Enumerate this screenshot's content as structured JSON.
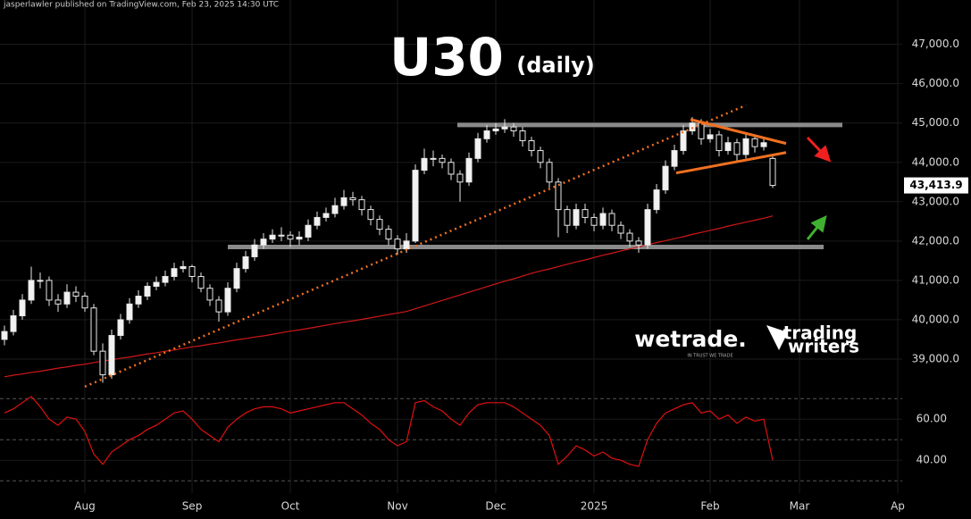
{
  "chart_data": {
    "type": "candlestick",
    "attribution": "jasperlawler published on TradingView.com, Feb 23, 2025 14:30 UTC",
    "title": "U30",
    "subtitle": "(daily)",
    "logos": [
      "wetrade.",
      "IN TRUST WE TRADE",
      "trading",
      "writers"
    ],
    "categories": [
      null,
      null,
      null,
      null,
      null,
      null,
      null,
      null,
      null,
      "Aug",
      null,
      null,
      null,
      null,
      null,
      null,
      null,
      null,
      null,
      null,
      null,
      "Sep",
      null,
      null,
      null,
      null,
      null,
      null,
      null,
      null,
      null,
      null,
      "Oct",
      null,
      null,
      null,
      null,
      null,
      null,
      null,
      null,
      null,
      null,
      null,
      "Nov",
      null,
      null,
      null,
      null,
      null,
      null,
      null,
      null,
      null,
      null,
      "Dec",
      null,
      null,
      null,
      null,
      null,
      null,
      null,
      null,
      null,
      null,
      "2025",
      null,
      null,
      null,
      null,
      null,
      null,
      null,
      null,
      null,
      null,
      null,
      null,
      "Feb",
      null,
      null,
      null,
      null,
      null,
      null,
      null,
      null,
      null,
      "Mar",
      null,
      null,
      null,
      null,
      null,
      null,
      null,
      null,
      null,
      null,
      "Ap"
    ],
    "ohlc": [
      [
        39500,
        39850,
        39350,
        39700
      ],
      [
        39700,
        40250,
        39600,
        40100
      ],
      [
        40100,
        40650,
        40000,
        40500
      ],
      [
        40500,
        41350,
        40400,
        41000
      ],
      [
        41000,
        41200,
        40800,
        41000
      ],
      [
        41000,
        41100,
        40350,
        40500
      ],
      [
        40500,
        40650,
        40200,
        40400
      ],
      [
        40400,
        40900,
        40300,
        40700
      ],
      [
        40700,
        40850,
        40450,
        40600
      ],
      [
        40600,
        40700,
        40200,
        40300
      ],
      [
        40300,
        40400,
        39100,
        39200
      ],
      [
        39200,
        39400,
        38400,
        38600
      ],
      [
        38600,
        39750,
        38500,
        39600
      ],
      [
        39600,
        40150,
        39500,
        40000
      ],
      [
        40000,
        40550,
        39900,
        40400
      ],
      [
        40400,
        40750,
        40300,
        40600
      ],
      [
        40600,
        40950,
        40500,
        40850
      ],
      [
        40850,
        41100,
        40750,
        40950
      ],
      [
        40950,
        41250,
        40850,
        41100
      ],
      [
        41100,
        41450,
        41000,
        41300
      ],
      [
        41300,
        41500,
        41200,
        41350
      ],
      [
        41350,
        41400,
        40950,
        41100
      ],
      [
        41100,
        41200,
        40700,
        40800
      ],
      [
        40800,
        40900,
        40350,
        40500
      ],
      [
        40500,
        40600,
        39950,
        40200
      ],
      [
        40200,
        40950,
        40100,
        40800
      ],
      [
        40800,
        41450,
        40700,
        41300
      ],
      [
        41300,
        41750,
        41200,
        41600
      ],
      [
        41600,
        42050,
        41500,
        41900
      ],
      [
        41900,
        42200,
        41800,
        42050
      ],
      [
        42050,
        42300,
        41950,
        42150
      ],
      [
        42150,
        42350,
        42000,
        42150
      ],
      [
        42150,
        42250,
        41850,
        42050
      ],
      [
        42050,
        42250,
        41900,
        42100
      ],
      [
        42100,
        42550,
        42000,
        42400
      ],
      [
        42400,
        42750,
        42300,
        42600
      ],
      [
        42600,
        42850,
        42500,
        42700
      ],
      [
        42700,
        43100,
        42600,
        42900
      ],
      [
        42900,
        43300,
        42800,
        43100
      ],
      [
        43100,
        43250,
        42900,
        43050
      ],
      [
        43050,
        43150,
        42650,
        42800
      ],
      [
        42800,
        42900,
        42400,
        42550
      ],
      [
        42550,
        42650,
        42150,
        42300
      ],
      [
        42300,
        42400,
        41900,
        42050
      ],
      [
        42050,
        42150,
        41650,
        41800
      ],
      [
        41800,
        42200,
        41700,
        42000
      ],
      [
        42000,
        43950,
        41950,
        43800
      ],
      [
        43800,
        44350,
        43700,
        44100
      ],
      [
        44100,
        44300,
        43900,
        44100
      ],
      [
        44100,
        44200,
        43850,
        44000
      ],
      [
        44000,
        44100,
        43550,
        43700
      ],
      [
        43700,
        43800,
        43000,
        43500
      ],
      [
        43500,
        44250,
        43400,
        44100
      ],
      [
        44100,
        44750,
        44000,
        44600
      ],
      [
        44600,
        44950,
        44500,
        44800
      ],
      [
        44800,
        45000,
        44700,
        44850
      ],
      [
        44850,
        45100,
        44750,
        44900
      ],
      [
        44900,
        45000,
        44650,
        44800
      ],
      [
        44800,
        44900,
        44400,
        44550
      ],
      [
        44550,
        44650,
        44150,
        44300
      ],
      [
        44300,
        44400,
        43850,
        44000
      ],
      [
        44000,
        44100,
        43350,
        43500
      ],
      [
        43500,
        43600,
        42100,
        42800
      ],
      [
        42800,
        42900,
        42200,
        42400
      ],
      [
        42400,
        42950,
        42300,
        42800
      ],
      [
        42800,
        42950,
        42450,
        42600
      ],
      [
        42600,
        42700,
        42250,
        42400
      ],
      [
        42400,
        42850,
        42300,
        42700
      ],
      [
        42700,
        42800,
        42250,
        42400
      ],
      [
        42400,
        42500,
        42050,
        42200
      ],
      [
        42200,
        42300,
        41850,
        42000
      ],
      [
        42000,
        42100,
        41700,
        41900
      ],
      [
        41900,
        42950,
        41800,
        42800
      ],
      [
        42800,
        43450,
        42700,
        43300
      ],
      [
        43300,
        44050,
        43200,
        43900
      ],
      [
        43900,
        44450,
        43800,
        44300
      ],
      [
        44300,
        44950,
        44200,
        44800
      ],
      [
        44800,
        45150,
        44700,
        45000
      ],
      [
        45000,
        45100,
        44450,
        44600
      ],
      [
        44600,
        44850,
        44500,
        44700
      ],
      [
        44700,
        44800,
        44150,
        44300
      ],
      [
        44300,
        44650,
        44200,
        44500
      ],
      [
        44500,
        44600,
        44050,
        44200
      ],
      [
        44200,
        44750,
        44100,
        44600
      ],
      [
        44600,
        44700,
        44250,
        44400
      ],
      [
        44400,
        44650,
        44300,
        44500
      ],
      [
        44100,
        44150,
        43350,
        43413.9
      ],
      null,
      null,
      null,
      null,
      null,
      null,
      null,
      null,
      null,
      null,
      null,
      null,
      null,
      null
    ],
    "ma": [
      38550,
      38590,
      38620,
      38660,
      38690,
      38730,
      38770,
      38800,
      38840,
      38870,
      38910,
      38950,
      38980,
      39020,
      39050,
      39090,
      39130,
      39160,
      39200,
      39230,
      39270,
      39310,
      39340,
      39380,
      39410,
      39450,
      39490,
      39520,
      39560,
      39590,
      39630,
      39670,
      39710,
      39740,
      39780,
      39820,
      39860,
      39900,
      39940,
      39970,
      40010,
      40050,
      40090,
      40130,
      40170,
      40210,
      40280,
      40350,
      40420,
      40490,
      40560,
      40630,
      40700,
      40770,
      40840,
      40910,
      40980,
      41040,
      41110,
      41180,
      41240,
      41290,
      41350,
      41410,
      41470,
      41520,
      41580,
      41640,
      41690,
      41750,
      41800,
      41850,
      41910,
      41960,
      42010,
      42060,
      42110,
      42170,
      42220,
      42270,
      42320,
      42380,
      42430,
      42480,
      42530,
      42580,
      42640,
      null,
      null,
      null,
      null,
      null,
      null,
      null,
      null,
      null,
      null,
      null,
      null,
      null,
      null
    ],
    "ma_color": "#d01818",
    "rsi": [
      63,
      65,
      68,
      71,
      66,
      60,
      57,
      61,
      60,
      54,
      43,
      38,
      44,
      47,
      50,
      52,
      55,
      57,
      60,
      63,
      64,
      60,
      55,
      52,
      49,
      56,
      60,
      63,
      65,
      66,
      66,
      65,
      63,
      64,
      65,
      66,
      67,
      68,
      68,
      65,
      62,
      58,
      55,
      50,
      47,
      49,
      68,
      69,
      66,
      64,
      60,
      57,
      63,
      67,
      68,
      68,
      68,
      66,
      63,
      60,
      57,
      52,
      38,
      42,
      47,
      45,
      42,
      44,
      41,
      40,
      38,
      37,
      50,
      58,
      63,
      65,
      67,
      68,
      63,
      64,
      60,
      62,
      58,
      61,
      59,
      60,
      40,
      null,
      null,
      null,
      null,
      null,
      null,
      null,
      null,
      null,
      null,
      null,
      null,
      null,
      null
    ],
    "rsi_color": "#e01010",
    "ylim": [
      38250,
      47900
    ],
    "yticks": [
      {
        "value": 39000,
        "label": "39,000.0"
      },
      {
        "value": 40000,
        "label": "40,000.0"
      },
      {
        "value": 41000,
        "label": "41,000.0"
      },
      {
        "value": 42000,
        "label": "42,000.0"
      },
      {
        "value": 43000,
        "label": "43,000.0"
      },
      {
        "value": 44000,
        "label": "44,000.0"
      },
      {
        "value": 45000,
        "label": "45,000.0"
      },
      {
        "value": 46000,
        "label": "46,000.0"
      },
      {
        "value": 47000,
        "label": "47,000.0"
      }
    ],
    "rsi_ylim": [
      24,
      72.7
    ],
    "rsi_yticks": [
      {
        "value": 60,
        "label": "60.00"
      },
      {
        "value": 40,
        "label": "40.00"
      }
    ],
    "rsi_bands": [
      70,
      50,
      30
    ],
    "last_price": {
      "value": 43413.9,
      "label": "43,413.9"
    },
    "resistance": 44950,
    "support": 41850,
    "trendline": [
      38300,
      45450
    ],
    "wedge_upper": [
      45090,
      44480
    ],
    "wedge_lower": [
      43730,
      44250
    ],
    "grid": true
  }
}
